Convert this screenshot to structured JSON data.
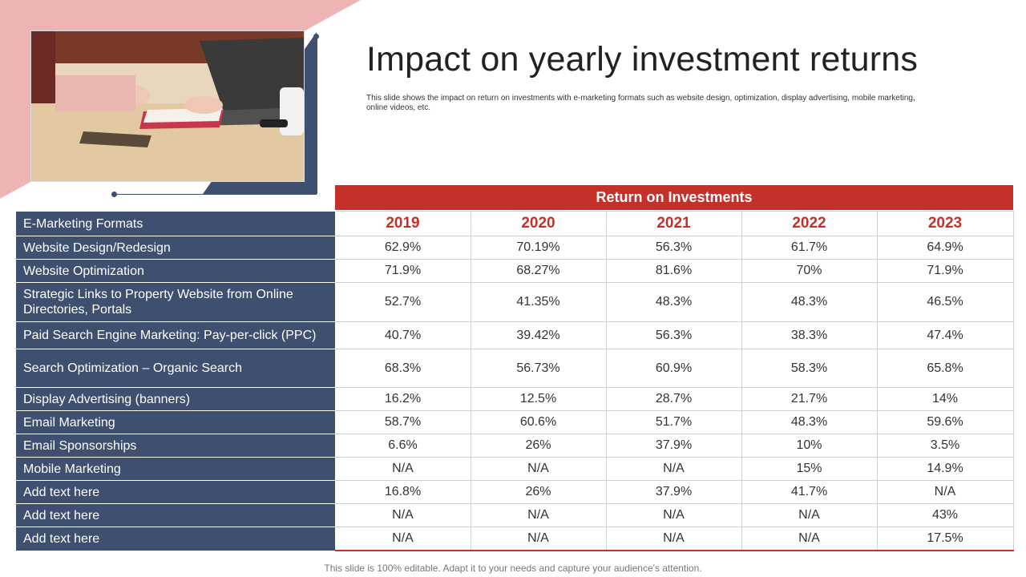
{
  "slide": {
    "title": "Impact on yearly investment returns",
    "subtitle": "This slide shows the impact on return on investments with e-marketing formats such as website design, optimization, display advertising, mobile marketing, online videos, etc.",
    "footer": "This slide is 100% editable. Adapt it to your needs and capture your audience's attention.",
    "colors": {
      "navy": "#3e4f70",
      "red": "#c5312a",
      "pink": "#ecb5b3"
    },
    "photo": "office-desk-photo"
  },
  "table": {
    "group_header": "Return on Investments",
    "first_column_header": "E-Marketing Formats",
    "years": [
      "2019",
      "2020",
      "2021",
      "2022",
      "2023"
    ],
    "rows": [
      {
        "format": "Website Design/Redesign",
        "values": [
          "62.9%",
          "70.19%",
          "56.3%",
          "61.7%",
          "64.9%"
        ]
      },
      {
        "format": "Website Optimization",
        "values": [
          "71.9%",
          "68.27%",
          "81.6%",
          "70%",
          "71.9%"
        ]
      },
      {
        "format": "Strategic Links to Property Website from Online Directories, Portals",
        "values": [
          "52.7%",
          "41.35%",
          "48.3%",
          "48.3%",
          "46.5%"
        ]
      },
      {
        "format": "Paid Search Engine Marketing: Pay-per-click (PPC)",
        "values": [
          "40.7%",
          "39.42%",
          "56.3%",
          "38.3%",
          "47.4%"
        ]
      },
      {
        "format": "Search Optimization – Organic Search",
        "values": [
          "68.3%",
          "56.73%",
          "60.9%",
          "58.3%",
          "65.8%"
        ]
      },
      {
        "format": "Display Advertising (banners)",
        "values": [
          "16.2%",
          "12.5%",
          "28.7%",
          "21.7%",
          "14%"
        ]
      },
      {
        "format": "Email Marketing",
        "values": [
          "58.7%",
          "60.6%",
          "51.7%",
          "48.3%",
          "59.6%"
        ]
      },
      {
        "format": "Email Sponsorships",
        "values": [
          "6.6%",
          "26%",
          "37.9%",
          "10%",
          "3.5%"
        ]
      },
      {
        "format": "Mobile Marketing",
        "values": [
          "N/A",
          "N/A",
          "N/A",
          "15%",
          "14.9%"
        ]
      },
      {
        "format": "Add text here",
        "values": [
          "16.8%",
          "26%",
          "37.9%",
          "41.7%",
          "N/A"
        ]
      },
      {
        "format": "Add text here",
        "values": [
          "N/A",
          "N/A",
          "N/A",
          "N/A",
          "43%"
        ]
      },
      {
        "format": "Add text here",
        "values": [
          "N/A",
          "N/A",
          "N/A",
          "N/A",
          "17.5%"
        ]
      }
    ]
  }
}
